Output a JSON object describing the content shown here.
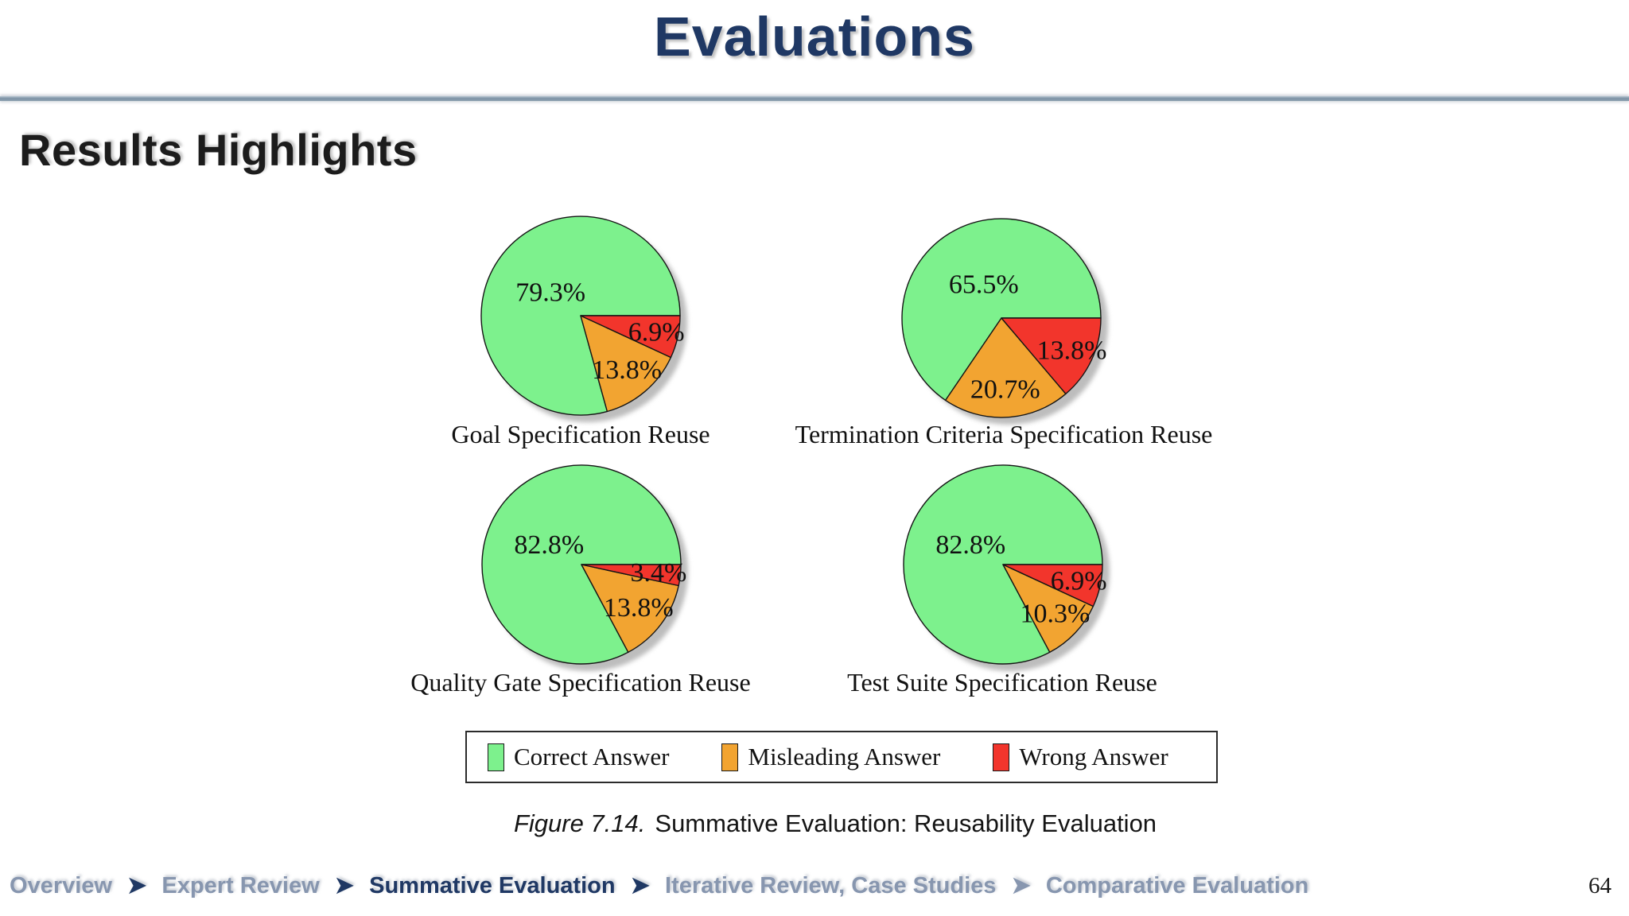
{
  "header": {
    "title": "Evaluations"
  },
  "section": {
    "heading": "Results Highlights"
  },
  "colors": {
    "navy": "#1F3864",
    "breadcrumb_inactive": "#8796AF",
    "correct_green": "#7DF18D",
    "misleading_orange": "#F2A431",
    "wrong_red": "#F2352C",
    "separator_line": "#8296A9"
  },
  "chart_data": [
    {
      "type": "pie",
      "title": "Goal Specification Reuse",
      "categories": [
        "Correct Answer",
        "Misleading Answer",
        "Wrong Answer"
      ],
      "values": [
        79.3,
        13.8,
        6.9
      ],
      "display_labels": [
        "79.3%",
        "13.8%",
        "6.9%"
      ]
    },
    {
      "type": "pie",
      "title": "Termination Criteria Specification Reuse",
      "categories": [
        "Correct Answer",
        "Misleading Answer",
        "Wrong Answer"
      ],
      "values": [
        65.5,
        20.7,
        13.8
      ],
      "display_labels": [
        "65.5%",
        "20.7%",
        "13.8%"
      ]
    },
    {
      "type": "pie",
      "title": "Quality Gate Specification Reuse",
      "categories": [
        "Correct Answer",
        "Misleading Answer",
        "Wrong Answer"
      ],
      "values": [
        82.8,
        13.8,
        3.4
      ],
      "display_labels": [
        "82.8%",
        "13.8%",
        "3.4%"
      ]
    },
    {
      "type": "pie",
      "title": "Test Suite Specification Reuse",
      "categories": [
        "Correct Answer",
        "Misleading Answer",
        "Wrong Answer"
      ],
      "values": [
        82.8,
        10.3,
        6.9
      ],
      "display_labels": [
        "82.8%",
        "10.3%",
        "6.9%"
      ]
    }
  ],
  "legend": {
    "entries": [
      {
        "label": "Correct Answer",
        "color": "#7DF18D"
      },
      {
        "label": "Misleading Answer",
        "color": "#F2A431"
      },
      {
        "label": "Wrong Answer",
        "color": "#F2352C"
      }
    ]
  },
  "figure_caption": {
    "prefix": "Figure 7.14.",
    "text": "Summative Evaluation:  Reusability Evaluation"
  },
  "footer": {
    "separator": "➤",
    "breadcrumb": [
      {
        "label": "Overview",
        "active": false
      },
      {
        "label": "Expert Review",
        "active": false
      },
      {
        "label": "Summative Evaluation",
        "active": true
      },
      {
        "label": "Iterative Review, Case Studies",
        "active": false
      },
      {
        "label": "Comparative Evaluation",
        "active": false
      }
    ],
    "page_number": "64"
  }
}
